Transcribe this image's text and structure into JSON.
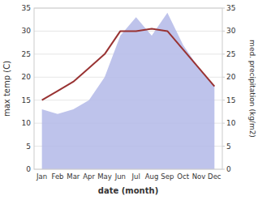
{
  "chart_data": {
    "type": "line",
    "xlabel": "date (month)",
    "ylabel": "max temp (C)",
    "y2label": "med. precipitation (kg/m2)",
    "categories": [
      "Jan",
      "Feb",
      "Mar",
      "Apr",
      "May",
      "Jun",
      "Jul",
      "Aug",
      "Sep",
      "Oct",
      "Nov",
      "Dec"
    ],
    "series": [
      {
        "type": "area",
        "axis": "y2",
        "color": "#b3b9e8",
        "values": [
          13,
          12,
          13,
          15,
          20,
          29,
          33,
          29,
          34,
          27,
          22,
          18
        ]
      },
      {
        "type": "line",
        "color": "#993333",
        "values": [
          15,
          17,
          19,
          22,
          25,
          30,
          30,
          30.5,
          30,
          26,
          22,
          18
        ]
      }
    ],
    "ylim": [
      0,
      35
    ],
    "yticks": [
      0,
      5,
      10,
      15,
      20,
      25,
      30,
      35
    ],
    "y2lim": [
      0,
      35
    ],
    "y2ticks": [
      0,
      5,
      10,
      15,
      20,
      25,
      30,
      35
    ],
    "grid": true
  }
}
